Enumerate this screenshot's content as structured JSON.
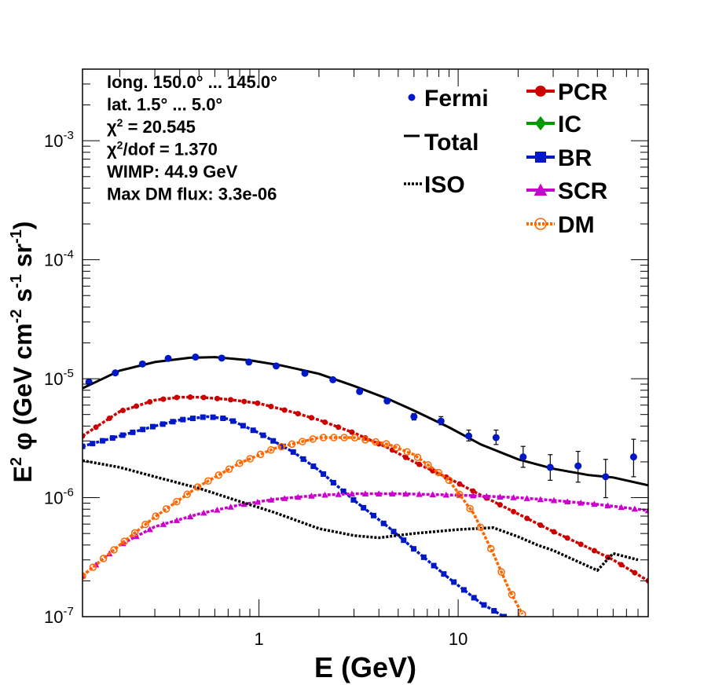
{
  "chart_data": {
    "type": "line",
    "xscale": "log",
    "yscale": "log",
    "xlim": [
      0.13,
      90
    ],
    "ylim": [
      1e-07,
      0.004
    ],
    "xlabel": "E (GeV)",
    "ylabel_parts": [
      "E",
      "2",
      " φ (GeV cm",
      "-2",
      " s",
      "-1",
      " sr",
      "-1",
      ")"
    ],
    "x_ticks": [
      {
        "value": 1,
        "label": "1"
      },
      {
        "value": 10,
        "label": "10"
      }
    ],
    "y_ticks": [
      {
        "value": 1e-07,
        "base": "10",
        "exp": "-7"
      },
      {
        "value": 1e-06,
        "base": "10",
        "exp": "-6"
      },
      {
        "value": 1e-05,
        "base": "10",
        "exp": "-5"
      },
      {
        "value": 0.0001,
        "base": "10",
        "exp": "-4"
      },
      {
        "value": 0.001,
        "base": "10",
        "exp": "-3"
      }
    ],
    "info_lines": [
      {
        "text": "long. 150.0° ... 145.0°"
      },
      {
        "text": "lat. 1.5° ... 5.0°"
      },
      {
        "pre": "χ",
        "sup": "2",
        "post": " = 20.545"
      },
      {
        "pre": "χ",
        "sup": "2",
        "post": "/dof = 1.370"
      },
      {
        "text": "WIMP: 44.9 GeV"
      },
      {
        "text": "Max DM flux: 3.3e-06"
      }
    ],
    "legend_left": [
      {
        "label": "Fermi",
        "marker": "dot",
        "color": "#0018c8"
      },
      {
        "label": "Total",
        "marker": "line",
        "color": "#000000"
      },
      {
        "label": "ISO",
        "marker": "dotted",
        "color": "#000000"
      }
    ],
    "legend_right": [
      {
        "label": "PCR",
        "marker": "circle",
        "color": "#cc0000"
      },
      {
        "label": "IC",
        "marker": "diamond",
        "color": "#009900"
      },
      {
        "label": "BR",
        "marker": "square",
        "color": "#0018c8"
      },
      {
        "label": "SCR",
        "marker": "triangle",
        "color": "#cc00cc"
      },
      {
        "label": "DM",
        "marker": "open-circle",
        "color": "#ff6600"
      }
    ],
    "fermi": {
      "x": [
        0.14,
        0.19,
        0.26,
        0.35,
        0.48,
        0.65,
        0.89,
        1.22,
        1.7,
        2.35,
        3.2,
        4.4,
        6.0,
        8.2,
        11.3,
        15.5,
        21.2,
        29,
        40,
        55,
        76
      ],
      "y": [
        9.4e-06,
        1.12e-05,
        1.33e-05,
        1.48e-05,
        1.52e-05,
        1.49e-05,
        1.38e-05,
        1.28e-05,
        1.11e-05,
        9.8e-06,
        7.8e-06,
        6.5e-06,
        4.8e-06,
        4.4e-06,
        3.3e-06,
        3.2e-06,
        2.2e-06,
        1.8e-06,
        1.85e-06,
        1.5e-06,
        2.2e-06
      ],
      "err_lo": [
        3e-07,
        3e-07,
        3e-07,
        3e-07,
        3e-07,
        3e-07,
        3e-07,
        3e-07,
        3e-07,
        3e-07,
        3e-07,
        3e-07,
        3e-07,
        3e-07,
        3e-07,
        4e-07,
        4e-07,
        4e-07,
        5e-07,
        5e-07,
        7e-07
      ],
      "err_hi": [
        3e-07,
        3e-07,
        3e-07,
        3e-07,
        3e-07,
        3e-07,
        3e-07,
        3e-07,
        3e-07,
        3e-07,
        3e-07,
        3e-07,
        3e-07,
        4e-07,
        4e-07,
        5e-07,
        5e-07,
        5e-07,
        6e-07,
        6e-07,
        9e-07
      ]
    },
    "series": [
      {
        "name": "Total",
        "color": "#000000",
        "style": "solid",
        "x": [
          0.13,
          0.2,
          0.3,
          0.45,
          0.6,
          0.9,
          1.3,
          2,
          3,
          4.5,
          6,
          9,
          13,
          20,
          30,
          45,
          60,
          90
        ],
        "y": [
          8.3e-06,
          1.17e-05,
          1.38e-05,
          1.5e-05,
          1.52e-05,
          1.43e-05,
          1.29e-05,
          1.1e-05,
          8.7e-06,
          6.7e-06,
          5.4e-06,
          3.9e-06,
          2.8e-06,
          2.1e-06,
          1.75e-06,
          1.55e-06,
          1.48e-06,
          1.27e-06
        ]
      },
      {
        "name": "PCR",
        "color": "#cc0000",
        "style": "dashed",
        "marker": "circle",
        "x": [
          0.13,
          0.2,
          0.3,
          0.4,
          0.5,
          0.7,
          1,
          1.5,
          2,
          3,
          4.5,
          6,
          9,
          13,
          20,
          30,
          45,
          60,
          90
        ],
        "y": [
          3.3e-06,
          5.3e-06,
          6.6e-06,
          7e-06,
          7e-06,
          6.7e-06,
          6.2e-06,
          5.2e-06,
          4.5e-06,
          3.5e-06,
          2.6e-06,
          2e-06,
          1.45e-06,
          1.05e-06,
          7.3e-07,
          5.2e-07,
          3.8e-07,
          3e-07,
          2e-07
        ]
      },
      {
        "name": "BR",
        "color": "#0018c8",
        "style": "dashed",
        "marker": "square",
        "x": [
          0.13,
          0.2,
          0.3,
          0.4,
          0.55,
          0.7,
          1,
          1.5,
          2,
          3,
          4.5,
          6,
          9,
          13,
          17
        ],
        "y": [
          2.7e-06,
          3.3e-06,
          4e-06,
          4.5e-06,
          4.8e-06,
          4.6e-06,
          3.5e-06,
          2.4e-06,
          1.7e-06,
          9.5e-07,
          5.6e-07,
          3.7e-07,
          2.1e-07,
          1.3e-07,
          1e-07
        ]
      },
      {
        "name": "SCR",
        "color": "#cc00cc",
        "style": "dashed",
        "marker": "triangle",
        "x": [
          0.13,
          0.2,
          0.3,
          0.5,
          0.8,
          1.2,
          2,
          3,
          5,
          8,
          12,
          20,
          30,
          50,
          90
        ],
        "y": [
          2.2e-07,
          4e-07,
          5.7e-07,
          7.3e-07,
          8.7e-07,
          9.7e-07,
          1.05e-06,
          1.08e-06,
          1.08e-06,
          1.06e-06,
          1.04e-06,
          1e-06,
          9.5e-07,
          8.8e-07,
          7.8e-07
        ]
      },
      {
        "name": "ISO",
        "color": "#000000",
        "style": "dotted",
        "x": [
          0.13,
          0.2,
          0.3,
          0.5,
          0.8,
          1.2,
          2,
          3,
          4,
          6,
          10,
          15,
          20,
          25,
          30,
          40,
          50,
          60,
          80
        ],
        "y": [
          2.05e-06,
          1.8e-06,
          1.5e-06,
          1.2e-06,
          9.3e-07,
          7.5e-07,
          5.5e-07,
          4.8e-07,
          4.6e-07,
          5e-07,
          5.4e-07,
          5.6e-07,
          4.7e-07,
          4e-07,
          3.6e-07,
          2.9e-07,
          2.45e-07,
          3.4e-07,
          3e-07
        ]
      },
      {
        "name": "DM",
        "color": "#ff6600",
        "style": "dashed",
        "marker": "open-circle",
        "x": [
          0.13,
          0.2,
          0.3,
          0.5,
          0.8,
          1.2,
          2,
          3,
          4.5,
          6,
          9,
          12,
          15,
          18,
          21
        ],
        "y": [
          2.2e-07,
          4e-07,
          6.9e-07,
          1.25e-06,
          1.95e-06,
          2.6e-06,
          3.2e-06,
          3.2e-06,
          2.8e-06,
          2.3e-06,
          1.4e-06,
          7.3e-07,
          3.4e-07,
          1.7e-07,
          1.05e-07
        ]
      }
    ]
  }
}
